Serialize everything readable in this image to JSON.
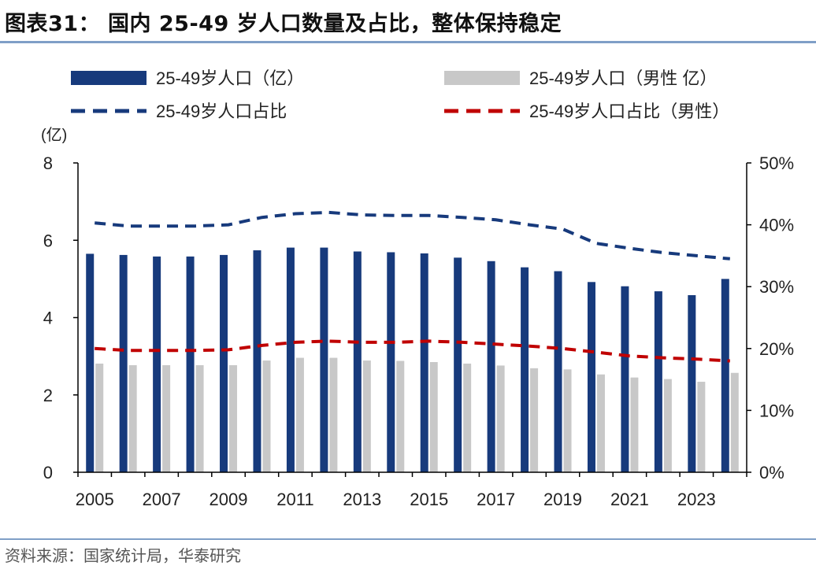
{
  "title": "图表31： 国内 25-49 岁人口数量及占比，整体保持稳定",
  "source": "资料来源：国家统计局，华泰研究",
  "chart_data": {
    "type": "bar",
    "y_unit": "(亿)",
    "x": [
      2005,
      2006,
      2007,
      2008,
      2009,
      2010,
      2011,
      2012,
      2013,
      2014,
      2015,
      2016,
      2017,
      2018,
      2019,
      2020,
      2021,
      2022,
      2023,
      2024
    ],
    "x_ticks": [
      "2005",
      "2007",
      "2009",
      "2011",
      "2013",
      "2015",
      "2017",
      "2019",
      "2021",
      "2023"
    ],
    "ylim_left": [
      0,
      8
    ],
    "yticks_left": [
      "0",
      "2",
      "4",
      "6",
      "8"
    ],
    "ylim_right": [
      0,
      50
    ],
    "yticks_right": [
      "0%",
      "10%",
      "20%",
      "30%",
      "40%",
      "50%"
    ],
    "grid": false,
    "legend_position": "top",
    "series": [
      {
        "name": "25-49岁人口（亿）",
        "kind": "bar",
        "axis": "left",
        "color": "#173a7c",
        "values": [
          5.65,
          5.62,
          5.58,
          5.58,
          5.62,
          5.74,
          5.81,
          5.81,
          5.71,
          5.69,
          5.66,
          5.55,
          5.46,
          5.3,
          5.2,
          4.92,
          4.81,
          4.68,
          4.58,
          5.0
        ]
      },
      {
        "name": "25-49岁人口（男性 亿）",
        "kind": "bar",
        "axis": "left",
        "color": "#c8c8c8",
        "values": [
          2.81,
          2.77,
          2.77,
          2.77,
          2.77,
          2.89,
          2.96,
          2.96,
          2.89,
          2.88,
          2.85,
          2.81,
          2.76,
          2.69,
          2.66,
          2.53,
          2.45,
          2.41,
          2.34,
          2.57
        ]
      },
      {
        "name": "25-49岁人口占比",
        "kind": "line",
        "axis": "right",
        "color": "#173a7c",
        "values": [
          40.3,
          39.8,
          39.8,
          39.8,
          40.0,
          41.2,
          41.8,
          42.0,
          41.6,
          41.5,
          41.5,
          41.2,
          40.8,
          40.0,
          39.3,
          37.0,
          36.2,
          35.5,
          35.0,
          34.5
        ]
      },
      {
        "name": "25-49岁人口占比（男性）",
        "kind": "line",
        "axis": "right",
        "color": "#c00000",
        "values": [
          20.0,
          19.7,
          19.7,
          19.7,
          19.8,
          20.5,
          21.0,
          21.2,
          21.0,
          21.0,
          21.2,
          21.0,
          20.7,
          20.4,
          20.0,
          19.4,
          18.8,
          18.5,
          18.3,
          18.0
        ]
      }
    ],
    "legend": [
      {
        "label": "25-49岁人口（亿）",
        "symbol": "bar",
        "color": "#173a7c"
      },
      {
        "label": "25-49岁人口（男性 亿）",
        "symbol": "bar",
        "color": "#c8c8c8"
      },
      {
        "label": "25-49岁人口占比",
        "symbol": "dash",
        "color": "#173a7c"
      },
      {
        "label": "25-49岁人口占比（男性）",
        "symbol": "dash",
        "color": "#c00000"
      }
    ]
  }
}
